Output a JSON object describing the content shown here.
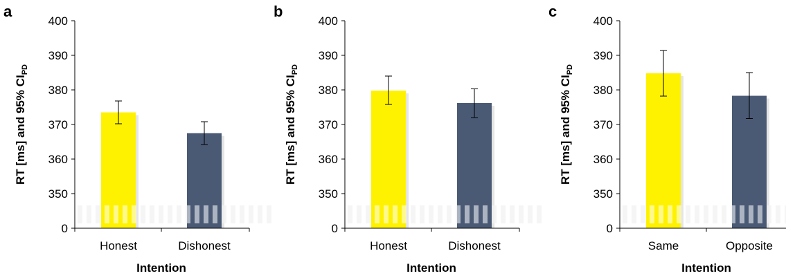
{
  "colors": {
    "bar_first": "#fff200",
    "bar_second": "#4a5a75",
    "axis": "#000000",
    "axis_break": "#e8e8e8",
    "shadow": "#cfcfcf"
  },
  "chart_data": [
    {
      "type": "bar",
      "panel_label": "a",
      "categories": [
        "Honest",
        "Dishonest"
      ],
      "values": [
        373.5,
        367.5
      ],
      "ci_low": [
        370.2,
        364.2
      ],
      "ci_high": [
        376.8,
        370.8
      ],
      "xlabel": "Intention",
      "ylabel_main": "RT [ms] and 95% CI",
      "ylabel_sub": "PD",
      "yticks": [
        "0",
        "350",
        "360",
        "370",
        "380",
        "390",
        "400"
      ],
      "tick_values": [
        340,
        350,
        360,
        370,
        380,
        390,
        400
      ],
      "ylim": [
        340,
        400
      ],
      "axis_break": true
    },
    {
      "type": "bar",
      "panel_label": "b",
      "categories": [
        "Honest",
        "Dishonest"
      ],
      "values": [
        379.8,
        376.2
      ],
      "ci_low": [
        375.8,
        372.0
      ],
      "ci_high": [
        384.0,
        380.3
      ],
      "xlabel": "Intention",
      "ylabel_main": "RT [ms] and 95% CI",
      "ylabel_sub": "PD",
      "yticks": [
        "0",
        "350",
        "360",
        "370",
        "380",
        "390",
        "400"
      ],
      "tick_values": [
        340,
        350,
        360,
        370,
        380,
        390,
        400
      ],
      "ylim": [
        340,
        400
      ],
      "axis_break": true
    },
    {
      "type": "bar",
      "panel_label": "c",
      "categories": [
        "Same",
        "Opposite"
      ],
      "values": [
        384.8,
        378.3
      ],
      "ci_low": [
        378.2,
        371.7
      ],
      "ci_high": [
        391.4,
        385.0
      ],
      "xlabel": "Intention",
      "ylabel_main": "RT [ms] and 95% CI",
      "ylabel_sub": "PD",
      "yticks": [
        "0",
        "350",
        "360",
        "370",
        "380",
        "390",
        "400"
      ],
      "tick_values": [
        340,
        350,
        360,
        370,
        380,
        390,
        400
      ],
      "ylim": [
        340,
        400
      ],
      "axis_break": true
    }
  ]
}
